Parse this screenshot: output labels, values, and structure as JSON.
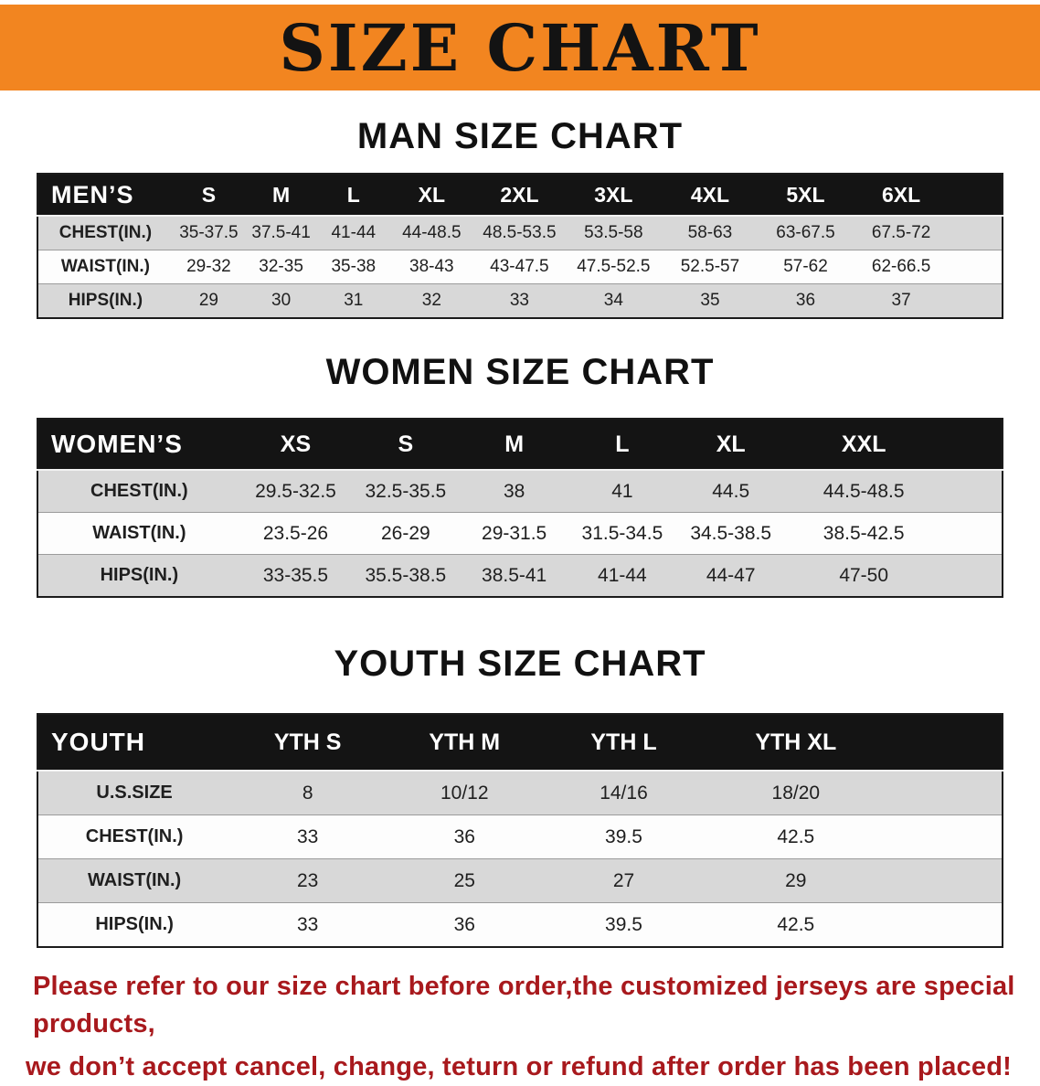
{
  "banner": {
    "title": "SIZE CHART"
  },
  "colors": {
    "banner_bg": "#f28520",
    "table_header_bg": "#141414",
    "row_alt_gray": "#d8d8d8",
    "disclaimer_red": "#a8191d"
  },
  "sections": {
    "men": {
      "heading": "MAN SIZE CHART",
      "table": {
        "header": [
          "MEN’S",
          "S",
          "M",
          "L",
          "XL",
          "2XL",
          "3XL",
          "4XL",
          "5XL",
          "6XL"
        ],
        "rows": [
          [
            "CHEST(IN.)",
            "35-37.5",
            "37.5-41",
            "41-44",
            "44-48.5",
            "48.5-53.5",
            "53.5-58",
            "58-63",
            "63-67.5",
            "67.5-72"
          ],
          [
            "WAIST(IN.)",
            "29-32",
            "32-35",
            "35-38",
            "38-43",
            "43-47.5",
            "47.5-52.5",
            "52.5-57",
            "57-62",
            "62-66.5"
          ],
          [
            "HIPS(IN.)",
            "29",
            "30",
            "31",
            "32",
            "33",
            "34",
            "35",
            "36",
            "37"
          ]
        ]
      }
    },
    "women": {
      "heading": "WOMEN SIZE CHART",
      "table": {
        "header": [
          "WOMEN’S",
          "XS",
          "S",
          "M",
          "L",
          "XL",
          "XXL"
        ],
        "rows": [
          [
            "CHEST(IN.)",
            "29.5-32.5",
            "32.5-35.5",
            "38",
            "41",
            "44.5",
            "44.5-48.5"
          ],
          [
            "WAIST(IN.)",
            "23.5-26",
            "26-29",
            "29-31.5",
            "31.5-34.5",
            "34.5-38.5",
            "38.5-42.5"
          ],
          [
            "HIPS(IN.)",
            "33-35.5",
            "35.5-38.5",
            "38.5-41",
            "41-44",
            "44-47",
            "47-50"
          ]
        ]
      }
    },
    "youth": {
      "heading": "YOUTH SIZE CHART",
      "table": {
        "header": [
          "YOUTH",
          "YTH S",
          "YTH M",
          "YTH L",
          "YTH XL"
        ],
        "rows": [
          [
            "U.S.SIZE",
            "8",
            "10/12",
            "14/16",
            "18/20"
          ],
          [
            "CHEST(IN.)",
            "33",
            "36",
            "39.5",
            "42.5"
          ],
          [
            "WAIST(IN.)",
            "23",
            "25",
            "27",
            "29"
          ],
          [
            "HIPS(IN.)",
            "33",
            "36",
            "39.5",
            "42.5"
          ]
        ]
      }
    }
  },
  "disclaimer": {
    "line1": "Please refer to our size chart before order,the customized jerseys are special products,",
    "line2": "we don’t accept cancel, change, teturn or refund after order has been placed!"
  }
}
